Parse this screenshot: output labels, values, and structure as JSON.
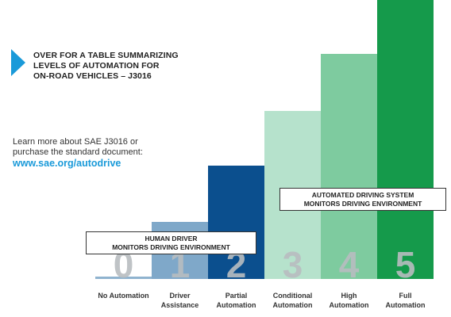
{
  "intro": {
    "lines": [
      "OVER FOR A TABLE SUMMARIZING",
      "LEVELS OF AUTOMATION FOR",
      "ON-ROAD VEHICLES – J3016"
    ]
  },
  "learn_more": {
    "text_line1": "Learn more about SAE J3016 or",
    "text_line2": "purchase the standard document:",
    "link": "www.sae.org/autodrive"
  },
  "banners": {
    "human_line1": "HUMAN DRIVER",
    "human_line2": "MONITORS DRIVING ENVIRONMENT",
    "ads_line1": "AUTOMATED DRIVING SYSTEM",
    "ads_line2": "MONITORS DRIVING ENVIRONMENT"
  },
  "colors": {
    "arrow": "#1a9ad9",
    "link": "#1a9ad9"
  },
  "chart_data": {
    "type": "bar",
    "title": "",
    "xlabel": "",
    "ylabel": "",
    "ylim": [
      0,
      5
    ],
    "categories": [
      "0",
      "1",
      "2",
      "3",
      "4",
      "5"
    ],
    "values": [
      0,
      1,
      2,
      3,
      4,
      5
    ],
    "category_labels": [
      [
        "No Automation"
      ],
      [
        "Driver",
        "Assistance"
      ],
      [
        "Partial",
        "Automation"
      ],
      [
        "Conditional",
        "Automation"
      ],
      [
        "High",
        "Automation"
      ],
      [
        "Full",
        "Automation"
      ]
    ],
    "bar_colors": [
      "#8fb3cf",
      "#7fa8c9",
      "#0b4f8e",
      "#b6e2cc",
      "#7ecb9f",
      "#159a4b"
    ],
    "digit_colors": [
      "#b8bcc0",
      "#b8bcc0",
      "#b8bcc0",
      "#b8bcc0",
      "#b8bcc0",
      "#b8bcc0"
    ],
    "grid": false,
    "legend": "none"
  }
}
